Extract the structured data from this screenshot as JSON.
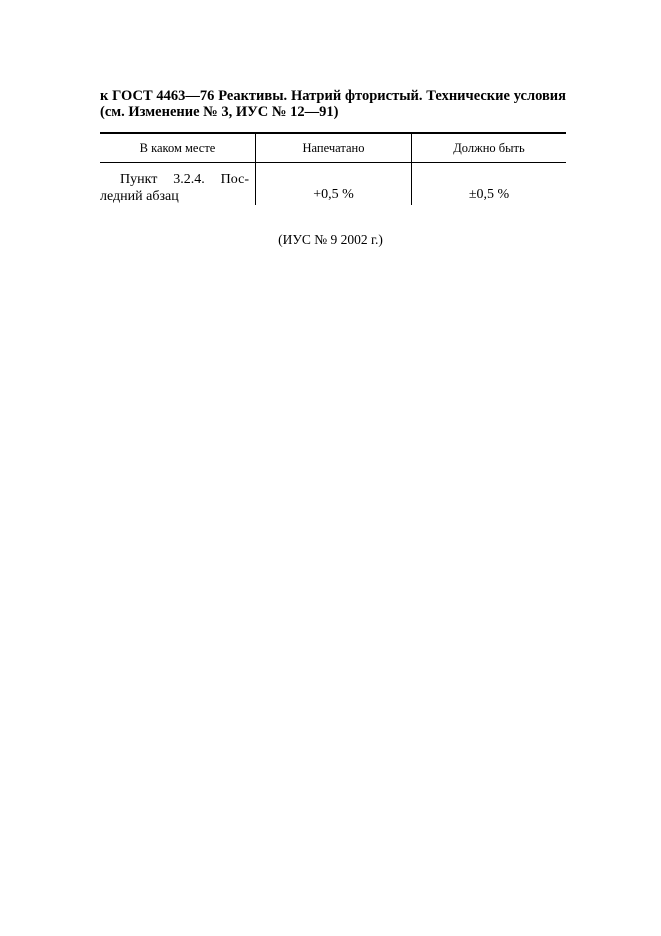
{
  "title": {
    "line1": "к ГОСТ  4463—76 Реактивы. Натрий фтористый. Технические условия",
    "line2": "(см. Изменение № 3, ИУС № 12—91)"
  },
  "table": {
    "headers": [
      "В каком месте",
      "Напечатано",
      "Должно быть"
    ],
    "rows": [
      {
        "place": "Пункт  3.2.4. Пос-ледний абзац",
        "printed": "+0,5 %",
        "should_be": "±0,5 %"
      }
    ]
  },
  "footer": "(ИУС № 9 2002 г.)"
}
